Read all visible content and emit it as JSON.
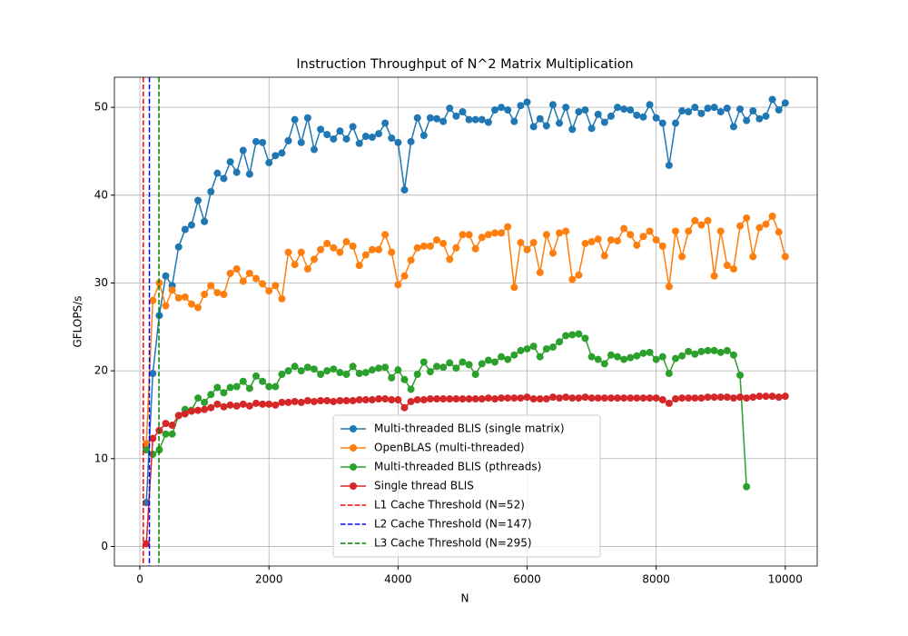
{
  "chart_data": {
    "type": "line",
    "title": "Instruction Throughput of N^2 Matrix Multiplication",
    "xlabel": "N",
    "ylabel": "GFLOPS/s",
    "x": [
      100,
      200,
      300,
      400,
      500,
      600,
      700,
      800,
      900,
      1000,
      1100,
      1200,
      1300,
      1400,
      1500,
      1600,
      1700,
      1800,
      1900,
      2000,
      2100,
      2200,
      2300,
      2400,
      2500,
      2600,
      2700,
      2800,
      2900,
      3000,
      3100,
      3200,
      3300,
      3400,
      3500,
      3600,
      3700,
      3800,
      3900,
      4000,
      4100,
      4200,
      4300,
      4400,
      4500,
      4600,
      4700,
      4800,
      4900,
      5000,
      5100,
      5200,
      5300,
      5400,
      5500,
      5600,
      5700,
      5800,
      5900,
      6000,
      6100,
      6200,
      6300,
      6400,
      6500,
      6600,
      6700,
      6800,
      6900,
      7000,
      7100,
      7200,
      7300,
      7400,
      7500,
      7600,
      7700,
      7800,
      7900,
      8000,
      8100,
      8200,
      8300,
      8400,
      8500,
      8600,
      8700,
      8800,
      8900,
      9000,
      9100,
      9200,
      9300,
      9400,
      9500,
      9600,
      9700,
      9800,
      9900,
      10000
    ],
    "series": [
      {
        "name": "Multi-threaded BLIS (single matrix)",
        "color": "#1f77b4",
        "values": [
          5,
          19.7,
          26.3,
          30.8,
          29.7,
          34.1,
          36.1,
          36.6,
          39.4,
          37,
          40.4,
          42.5,
          41.9,
          43.8,
          42.6,
          45.1,
          42.4,
          46.1,
          46,
          43.7,
          44.5,
          44.8,
          46.2,
          48.6,
          46,
          48.8,
          45.2,
          47.5,
          46.9,
          46.4,
          47.3,
          46.4,
          47.8,
          45.9,
          46.7,
          46.6,
          47,
          48.2,
          46.5,
          46,
          40.6,
          46.1,
          48.8,
          46.8,
          48.8,
          48.7,
          48.4,
          49.9,
          49,
          49.5,
          48.6,
          48.6,
          48.6,
          48.3,
          49.7,
          50,
          49.7,
          48.4,
          50.2,
          50.6,
          47.8,
          48.7,
          47.9,
          50.3,
          48.2,
          50,
          47.5,
          49.5,
          49.7,
          47.6,
          49.2,
          48.3,
          49,
          50,
          49.8,
          49.7,
          49.1,
          48.9,
          50.3,
          48.8,
          48.2,
          43.4,
          48.2,
          49.6,
          49.5,
          50,
          49.3,
          49.9,
          50,
          49.5,
          49.9,
          47.8,
          49.8,
          48.5,
          49.6,
          48.7,
          49,
          50.9,
          49.7,
          50.5
        ]
      },
      {
        "name": "OpenBLAS (multi-threaded)",
        "color": "#ff7f0e",
        "values": [
          11.7,
          28,
          30,
          27.4,
          29.2,
          28.3,
          28.4,
          27.6,
          27.2,
          28.7,
          29.7,
          28.9,
          28.7,
          31.1,
          31.6,
          30.2,
          31.1,
          30.5,
          29.9,
          29.1,
          29.7,
          28.2,
          33.5,
          32.1,
          33.5,
          31.6,
          32.7,
          33.8,
          34.5,
          34,
          33.5,
          34.7,
          34.2,
          32,
          33.2,
          33.8,
          33.8,
          35.5,
          33.5,
          29.8,
          30.8,
          32.6,
          34,
          34.2,
          34.2,
          34.9,
          34.5,
          32.7,
          34,
          35.5,
          35.5,
          33.9,
          35.2,
          35.5,
          35.7,
          35.7,
          36.4,
          29.5,
          34.6,
          33.8,
          34.6,
          31.2,
          35.5,
          33.4,
          35.7,
          35.9,
          30.4,
          30.9,
          34.5,
          34.7,
          35,
          33.1,
          34.9,
          34.8,
          36.2,
          35.5,
          34.3,
          35.3,
          35.9,
          34.9,
          34.2,
          29.6,
          35.9,
          33,
          35.9,
          37.1,
          36.6,
          37.1,
          30.8,
          35.9,
          32,
          31.6,
          36.5,
          37.4,
          33,
          36.3,
          36.7,
          37.6,
          35.8,
          33
        ]
      },
      {
        "name": "Multi-threaded BLIS (pthreads)",
        "color": "#2ca02c",
        "values": [
          11,
          10.5,
          11,
          12.8,
          12.8,
          14.9,
          15.6,
          15.5,
          16.9,
          16.4,
          17.3,
          18.1,
          17.5,
          18.1,
          18.2,
          18.8,
          18,
          19.4,
          18.8,
          18.2,
          18.2,
          19.6,
          20,
          20.5,
          20,
          20.4,
          20.2,
          19.6,
          20,
          20.2,
          19.8,
          19.6,
          20.5,
          19.7,
          19.8,
          20.1,
          20.3,
          20.4,
          19.2,
          20.1,
          19,
          17.9,
          19.6,
          21,
          19.9,
          20.5,
          20.4,
          20.9,
          20.3,
          21,
          20.7,
          19.6,
          20.8,
          21.2,
          21,
          21.6,
          21.3,
          21.8,
          22.3,
          22.5,
          22.8,
          21.6,
          22.5,
          22.7,
          23.3,
          24,
          24.1,
          24.2,
          23.7,
          21.6,
          21.3,
          20.8,
          21.8,
          21.6,
          21.3,
          21.5,
          21.7,
          22,
          22.1,
          21.3,
          21.6,
          19.7,
          21.4,
          21.7,
          22.2,
          21.9,
          22.2,
          22.3,
          22.3,
          22.1,
          22.3,
          21.8,
          19.5,
          6.8,
          null,
          null,
          null,
          null,
          null,
          null
        ]
      },
      {
        "name": "Single thread BLIS",
        "color": "#d62728",
        "values": [
          0.3,
          12.3,
          13.2,
          14,
          13.8,
          14.9,
          15.1,
          15.4,
          15.5,
          15.6,
          15.8,
          16.2,
          15.9,
          16.1,
          16,
          16.2,
          16,
          16.3,
          16.2,
          16.2,
          16.1,
          16.4,
          16.4,
          16.5,
          16.4,
          16.6,
          16.5,
          16.6,
          16.6,
          16.5,
          16.6,
          16.6,
          16.6,
          16.7,
          16.7,
          16.7,
          16.8,
          16.8,
          16.7,
          16.7,
          15.8,
          16.5,
          16.7,
          16.7,
          16.8,
          16.8,
          16.8,
          16.8,
          16.8,
          16.8,
          16.8,
          16.8,
          16.8,
          16.9,
          16.8,
          16.9,
          16.9,
          16.9,
          16.9,
          17,
          16.8,
          16.8,
          16.8,
          17,
          16.9,
          17,
          16.9,
          16.9,
          17,
          16.9,
          16.9,
          16.9,
          16.9,
          16.9,
          16.9,
          16.9,
          16.9,
          16.9,
          16.9,
          16.9,
          16.7,
          16.3,
          16.8,
          16.9,
          16.9,
          16.9,
          16.9,
          17,
          17,
          17,
          17,
          16.9,
          17,
          16.9,
          17,
          17.1,
          17.1,
          17.1,
          17,
          17.1
        ]
      }
    ],
    "vlines": [
      {
        "name": "L1 Cache Threshold (N=52)",
        "x": 52,
        "color": "#ff0000"
      },
      {
        "name": "L2 Cache Threshold (N=147)",
        "x": 147,
        "color": "#0000ff"
      },
      {
        "name": "L3 Cache Threshold (N=295)",
        "x": 295,
        "color": "#008000"
      }
    ],
    "xlim": [
      -395,
      10495
    ],
    "ylim": [
      -2.23,
      53.43
    ],
    "xticks": [
      0,
      2000,
      4000,
      6000,
      8000,
      10000
    ],
    "yticks": [
      0,
      10,
      20,
      30,
      40,
      50
    ],
    "grid": true,
    "legend": "lower center"
  }
}
